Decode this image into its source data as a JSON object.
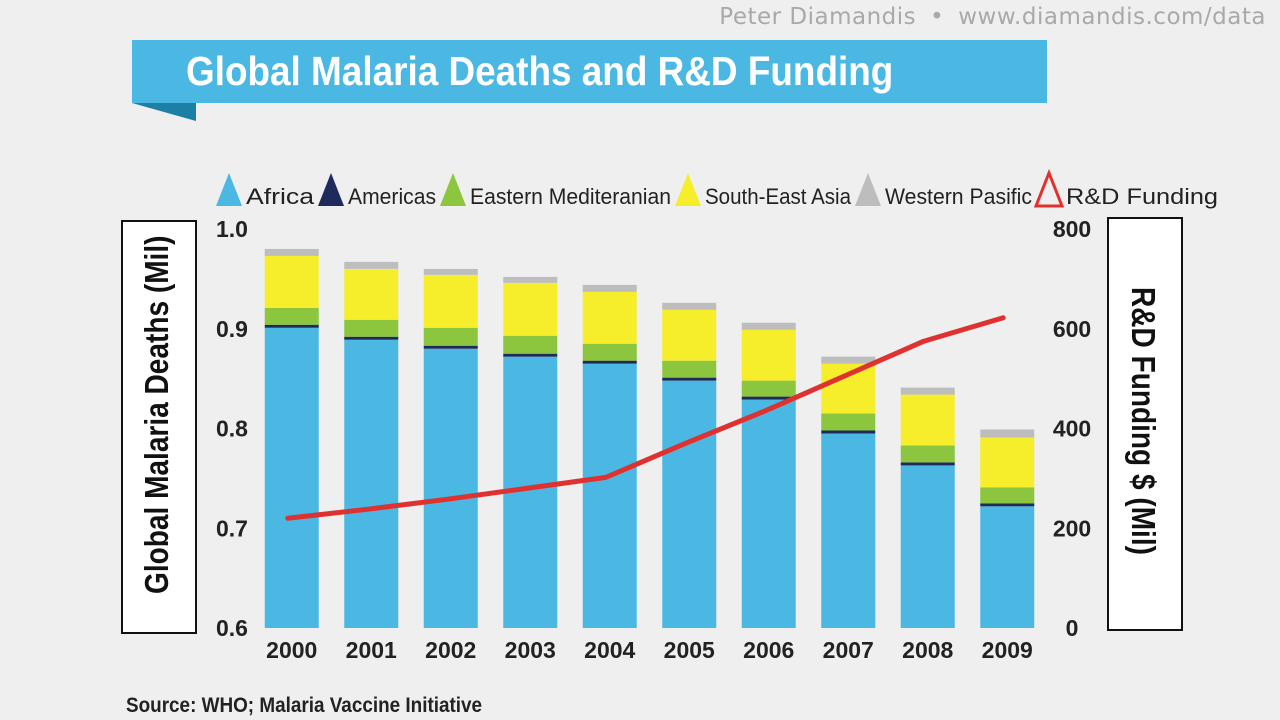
{
  "watermark": {
    "author": "Peter Diamandis",
    "separator": "•",
    "url": "www.diamandis.com/data"
  },
  "chart_data": {
    "type": "bar",
    "title": "Global Malaria Deaths and R&D Funding",
    "categories": [
      "2000",
      "2001",
      "2002",
      "2003",
      "2004",
      "2005",
      "2006",
      "2007",
      "2008",
      "2009"
    ],
    "series": [
      {
        "name": "Africa",
        "color": "#4ab8e2",
        "values": [
          0.901,
          0.889,
          0.88,
          0.872,
          0.865,
          0.848,
          0.829,
          0.795,
          0.763,
          0.722
        ]
      },
      {
        "name": "Americas",
        "color": "#1f2a5c",
        "values": [
          0.003,
          0.003,
          0.003,
          0.003,
          0.003,
          0.003,
          0.003,
          0.003,
          0.003,
          0.003
        ]
      },
      {
        "name": "Eastern Mediteranian",
        "color": "#8cc63f",
        "values": [
          0.017,
          0.017,
          0.018,
          0.018,
          0.017,
          0.017,
          0.016,
          0.017,
          0.017,
          0.016
        ]
      },
      {
        "name": "South-East Asia",
        "color": "#f7ee2b",
        "values": [
          0.052,
          0.051,
          0.053,
          0.053,
          0.052,
          0.051,
          0.051,
          0.05,
          0.051,
          0.05
        ]
      },
      {
        "name": "Western Pasific",
        "color": "#bdbdbd",
        "values": [
          0.007,
          0.007,
          0.006,
          0.006,
          0.007,
          0.007,
          0.007,
          0.007,
          0.007,
          0.008
        ]
      }
    ],
    "line_series": {
      "name": "R&D Funding",
      "color": "#e03131",
      "axis": "right",
      "values": [
        220,
        238,
        258,
        280,
        302,
        370,
        435,
        505,
        575,
        622
      ]
    },
    "ylabel": "Global Malaria Deaths (Mil)",
    "ylabel_right": "R&D Funding $ (Mil)",
    "ylim": [
      0.6,
      1.0
    ],
    "ylim_right": [
      0,
      800
    ],
    "yticks": [
      "0.6",
      "0.7",
      "0.8",
      "0.9",
      "1.0"
    ],
    "yticks_right": [
      "0",
      "200",
      "400",
      "600",
      "800"
    ],
    "legend_position": "top",
    "grid": false
  },
  "source": "Source:  WHO; Malaria Vaccine Initiative"
}
